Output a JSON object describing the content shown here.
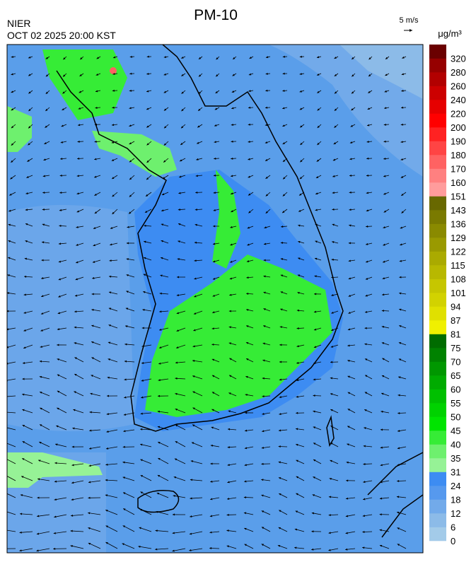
{
  "header": {
    "title": "PM-10",
    "agency": "NIER",
    "timestamp": "OCT 02 2025 20:00 KST"
  },
  "wind_legend": {
    "label": "5 m/s"
  },
  "colorbar": {
    "unit": "μg/m³",
    "ticks": [
      0,
      6,
      12,
      18,
      24,
      31,
      35,
      40,
      45,
      50,
      55,
      60,
      65,
      70,
      75,
      81,
      87,
      94,
      101,
      108,
      115,
      122,
      129,
      136,
      143,
      151,
      160,
      170,
      180,
      190,
      200,
      220,
      240,
      260,
      280,
      320
    ],
    "colors": [
      "#a3cbe9",
      "#8cbbe8",
      "#72aaea",
      "#5699ee",
      "#3d8cf2",
      "#96f296",
      "#6ef06e",
      "#36ec36",
      "#00e400",
      "#00d200",
      "#00c000",
      "#00ab00",
      "#009700",
      "#008200",
      "#006c00",
      "#f0f000",
      "#e0e000",
      "#d2d200",
      "#c6c600",
      "#b8b800",
      "#aaaa00",
      "#9a9a00",
      "#8a8a00",
      "#7a7a00",
      "#686800",
      "#ff9c9c",
      "#ff8080",
      "#ff6262",
      "#ff4444",
      "#ff2222",
      "#ff0000",
      "#e60000",
      "#cc0000",
      "#b20000",
      "#960000",
      "#6a0000"
    ]
  }
}
